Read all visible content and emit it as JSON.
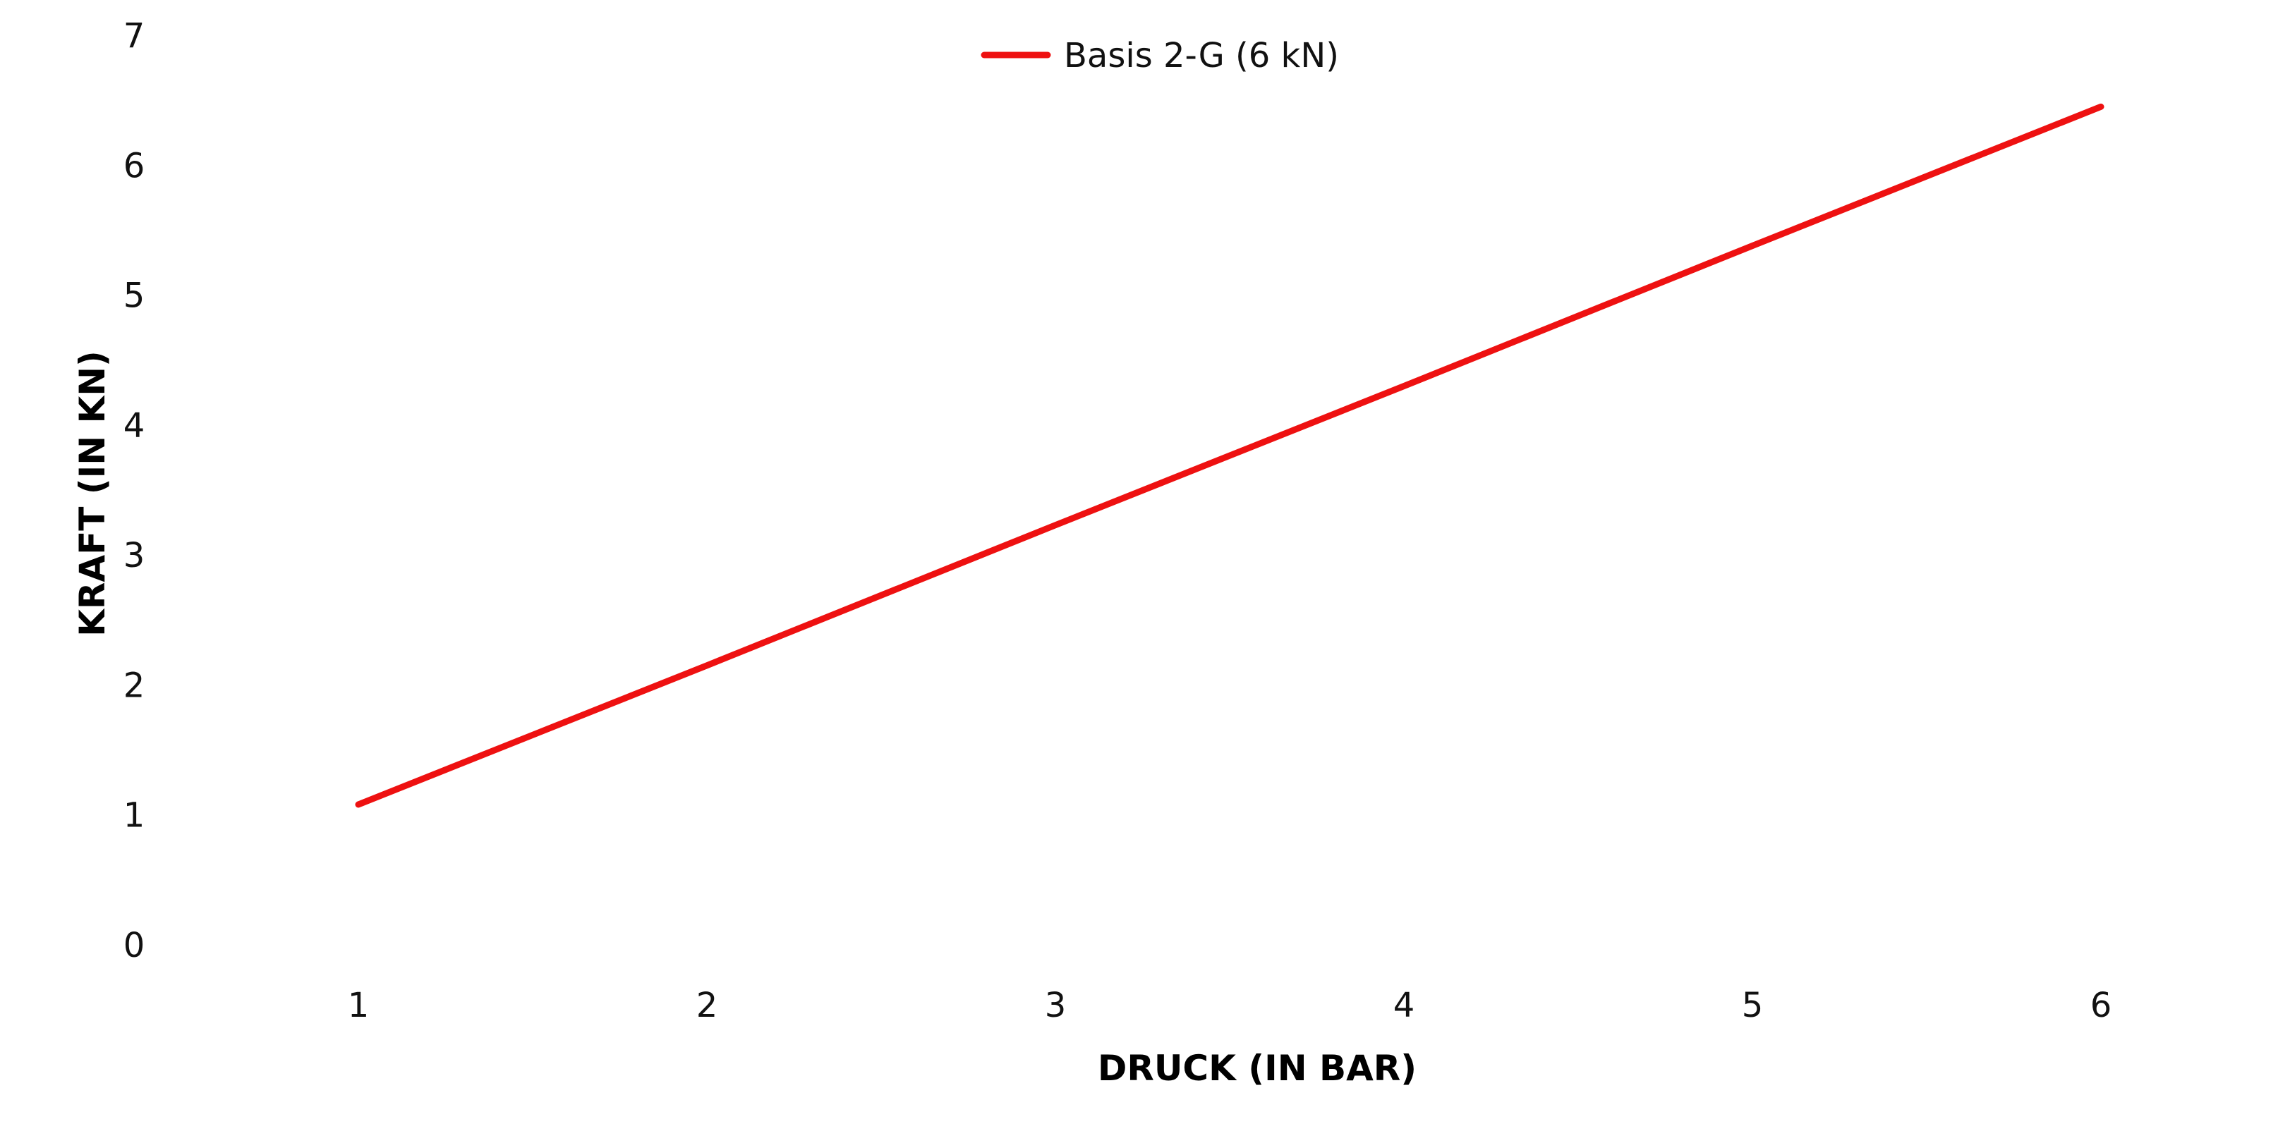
{
  "chart_data": {
    "type": "line",
    "x": [
      1,
      2,
      3,
      4,
      5,
      6
    ],
    "series": [
      {
        "name": "Basis 2-G (6 kN)",
        "color": "#ee1111",
        "values": [
          1.08,
          2.15,
          3.23,
          4.3,
          5.38,
          6.45
        ]
      }
    ],
    "xlabel": "DRUCK (IN BAR)",
    "ylabel": "KRAFT (IN KN)",
    "xticks": [
      "1",
      "2",
      "3",
      "4",
      "5",
      "6"
    ],
    "yticks": [
      "0",
      "1",
      "2",
      "3",
      "4",
      "5",
      "6",
      "7"
    ],
    "ylim": [
      0,
      7
    ],
    "grid": false,
    "legend_position": "top-center"
  }
}
